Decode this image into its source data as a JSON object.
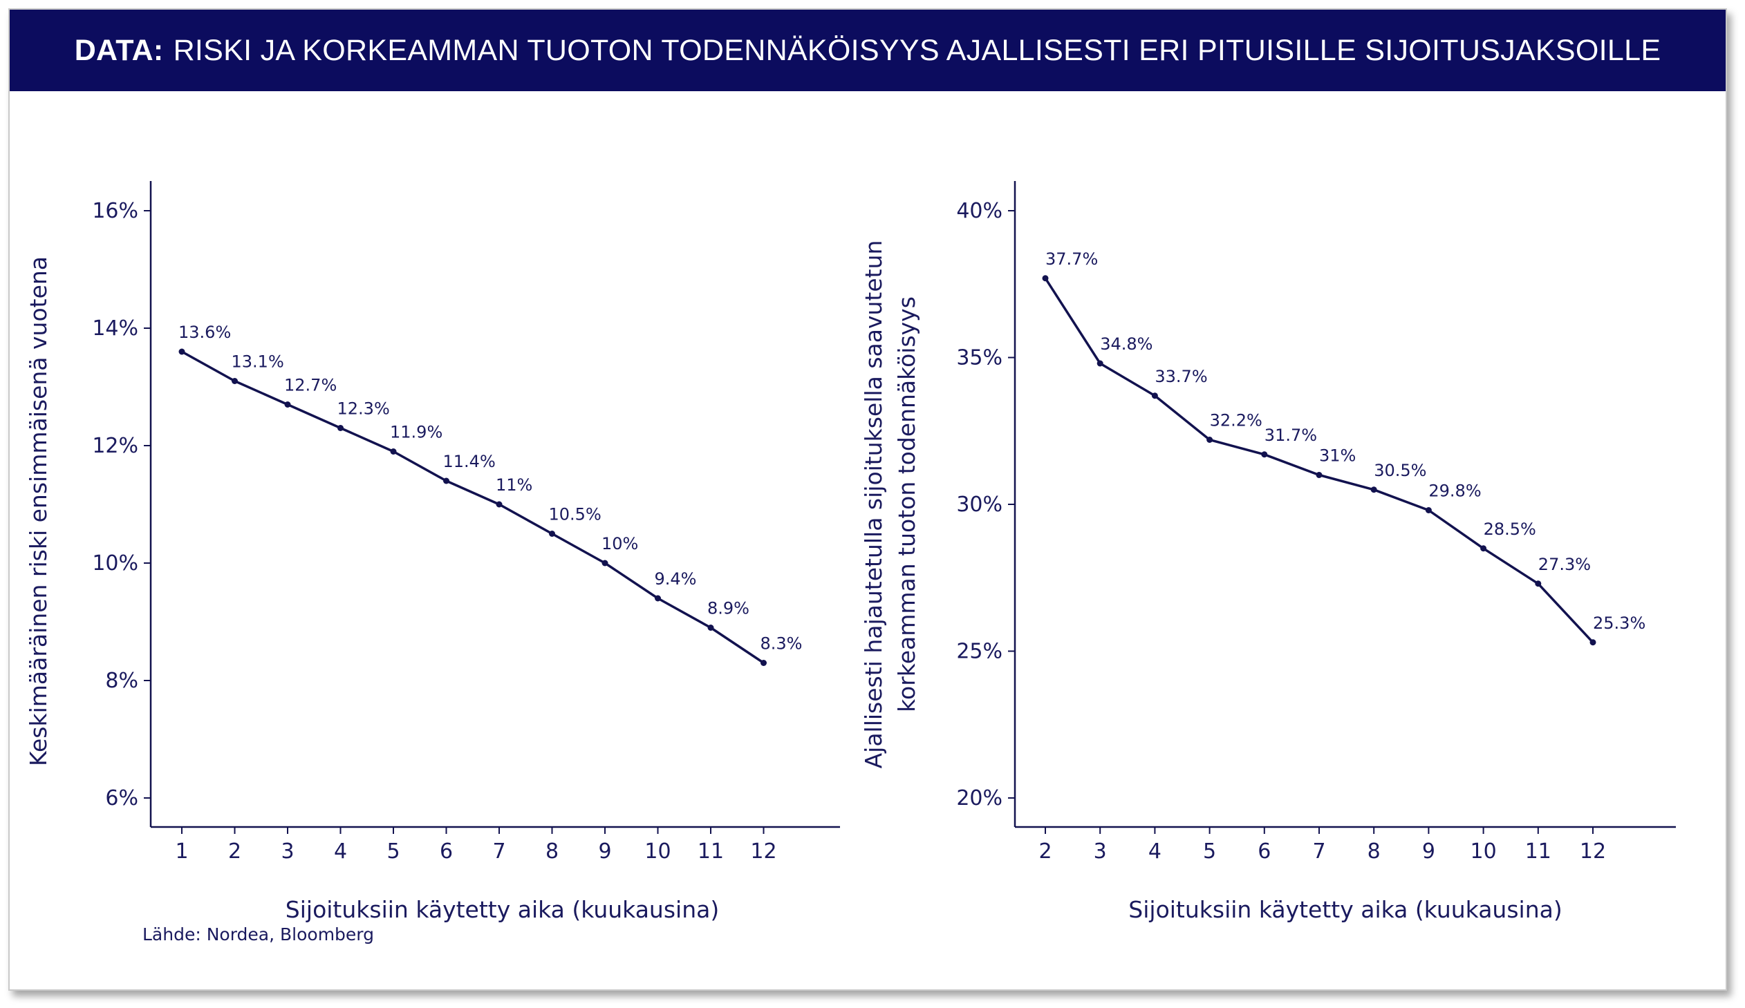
{
  "banner": {
    "prefix": "DATA:",
    "title": "RISKI JA KORKEAMMAN TUOTON TODENNÄKÖISYYS AJALLISESTI ERI PITUISILLE SIJOITUSJAKSOILLE"
  },
  "source": "Lähde: Nordea, Bloomberg",
  "colors": {
    "banner": "#0c0c5e",
    "line": "#12124f",
    "text": "#1a1a5e"
  },
  "chart_data": [
    {
      "type": "line",
      "title": "",
      "xlabel": "Sijoituksiin käytetty aika (kuukausina)",
      "ylabel": "Keskimääräinen riski ensimmäisenä vuotena",
      "ylim": [
        6,
        16
      ],
      "yticks": [
        "6%",
        "8%",
        "10%",
        "12%",
        "14%",
        "16%"
      ],
      "ytick_values": [
        6,
        8,
        10,
        12,
        14,
        16
      ],
      "x": [
        1,
        2,
        3,
        4,
        5,
        6,
        7,
        8,
        9,
        10,
        11,
        12
      ],
      "values": [
        13.6,
        13.1,
        12.7,
        12.3,
        11.9,
        11.4,
        11.0,
        10.5,
        10.0,
        9.4,
        8.9,
        8.3
      ],
      "data_labels": [
        "13.6%",
        "13.1%",
        "12.7%",
        "12.3%",
        "11.9%",
        "11.4%",
        "11%",
        "10.5%",
        "10%",
        "9.4%",
        "8.9%",
        "8.3%"
      ],
      "grid": false
    },
    {
      "type": "line",
      "title": "",
      "xlabel": "Sijoituksiin käytetty aika (kuukausina)",
      "ylabel": [
        "Ajallisesti hajautetulla sijoituksella saavutetun",
        "korkeamman tuoton todennäköisyys"
      ],
      "ylim": [
        20,
        40
      ],
      "yticks": [
        "20%",
        "25%",
        "30%",
        "35%",
        "40%"
      ],
      "ytick_values": [
        20,
        25,
        30,
        35,
        40
      ],
      "x": [
        2,
        3,
        4,
        5,
        6,
        7,
        8,
        9,
        10,
        11,
        12
      ],
      "values": [
        37.7,
        34.8,
        33.7,
        32.2,
        31.7,
        31.0,
        30.5,
        29.8,
        28.5,
        27.3,
        25.3
      ],
      "data_labels": [
        "37.7%",
        "34.8%",
        "33.7%",
        "32.2%",
        "31.7%",
        "31%",
        "30.5%",
        "29.8%",
        "28.5%",
        "27.3%",
        "25.3%"
      ],
      "grid": false
    }
  ]
}
